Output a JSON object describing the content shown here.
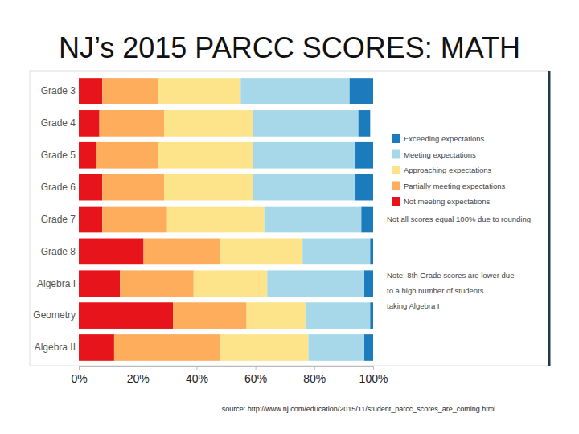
{
  "chart_data": {
    "type": "bar",
    "orientation": "horizontal",
    "stacked": true,
    "title": "NJ’s 2015 PARCC SCORES: MATH",
    "categories": [
      "Grade 3",
      "Grade 4",
      "Grade 5",
      "Grade 6",
      "Grade 7",
      "Grade 8",
      "Algebra I",
      "Geometry",
      "Algebra II"
    ],
    "series": [
      {
        "name": "Not meeting expectations",
        "color": "#e8141b",
        "values": [
          8,
          7,
          6,
          8,
          8,
          22,
          14,
          32,
          12
        ]
      },
      {
        "name": "Partially meeting expectations",
        "color": "#fdad5c",
        "values": [
          19,
          22,
          21,
          21,
          22,
          26,
          25,
          25,
          36
        ]
      },
      {
        "name": "Approaching expectations",
        "color": "#fde48a",
        "values": [
          28,
          30,
          32,
          30,
          33,
          28,
          25,
          20,
          30
        ]
      },
      {
        "name": "Meeting expectations",
        "color": "#a6d8ea",
        "values": [
          37,
          36,
          35,
          35,
          33,
          23,
          33,
          22,
          19
        ]
      },
      {
        "name": "Exceeding expectations",
        "color": "#1b7bbd",
        "values": [
          8,
          4,
          6,
          6,
          4,
          1,
          3,
          1,
          3
        ]
      }
    ],
    "xlim": [
      0,
      100
    ],
    "xticks": [
      {
        "value": 0,
        "label": "0%"
      },
      {
        "value": 20,
        "label": "20%"
      },
      {
        "value": 40,
        "label": "40%"
      },
      {
        "value": 60,
        "label": "60%"
      },
      {
        "value": 80,
        "label": "80%"
      },
      {
        "value": 100,
        "label": "100%"
      }
    ],
    "legend": "right",
    "annotations": [
      {
        "lines": [
          "Not all scores equal 100% due to rounding"
        ]
      },
      {
        "lines": [
          "Note: 8th Grade scores are lower due",
          "to a high number of students",
          "taking Algebra I"
        ]
      }
    ],
    "source": "source: http://www.nj.com/education/2015/11/student_parcc_scores_are_coming.html"
  }
}
